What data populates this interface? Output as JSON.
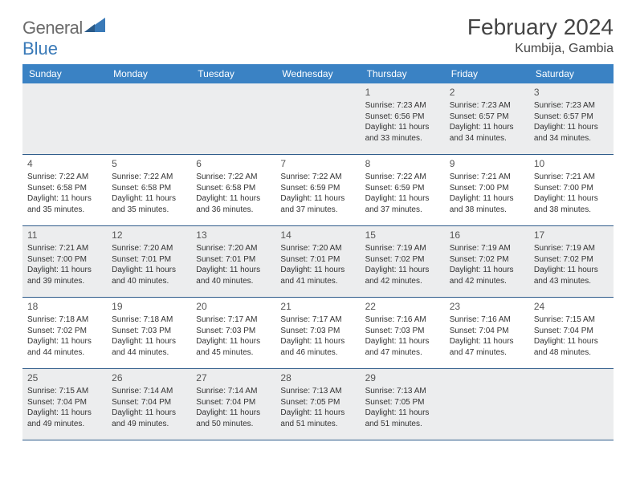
{
  "logo": {
    "general": "General",
    "blue": "Blue"
  },
  "title": "February 2024",
  "location": "Kumbija, Gambia",
  "colors": {
    "header_bg": "#3a82c4",
    "divider": "#2e5b8a",
    "shade": "#ecedee",
    "text": "#333333",
    "logo_gray": "#6b6b6b",
    "logo_blue": "#3a7ab8"
  },
  "daynames": [
    "Sunday",
    "Monday",
    "Tuesday",
    "Wednesday",
    "Thursday",
    "Friday",
    "Saturday"
  ],
  "weeks": [
    {
      "shaded": true,
      "cells": [
        null,
        null,
        null,
        null,
        {
          "num": "1",
          "sunrise": "Sunrise: 7:23 AM",
          "sunset": "Sunset: 6:56 PM",
          "daylight": "Daylight: 11 hours and 33 minutes."
        },
        {
          "num": "2",
          "sunrise": "Sunrise: 7:23 AM",
          "sunset": "Sunset: 6:57 PM",
          "daylight": "Daylight: 11 hours and 34 minutes."
        },
        {
          "num": "3",
          "sunrise": "Sunrise: 7:23 AM",
          "sunset": "Sunset: 6:57 PM",
          "daylight": "Daylight: 11 hours and 34 minutes."
        }
      ]
    },
    {
      "shaded": false,
      "cells": [
        {
          "num": "4",
          "sunrise": "Sunrise: 7:22 AM",
          "sunset": "Sunset: 6:58 PM",
          "daylight": "Daylight: 11 hours and 35 minutes."
        },
        {
          "num": "5",
          "sunrise": "Sunrise: 7:22 AM",
          "sunset": "Sunset: 6:58 PM",
          "daylight": "Daylight: 11 hours and 35 minutes."
        },
        {
          "num": "6",
          "sunrise": "Sunrise: 7:22 AM",
          "sunset": "Sunset: 6:58 PM",
          "daylight": "Daylight: 11 hours and 36 minutes."
        },
        {
          "num": "7",
          "sunrise": "Sunrise: 7:22 AM",
          "sunset": "Sunset: 6:59 PM",
          "daylight": "Daylight: 11 hours and 37 minutes."
        },
        {
          "num": "8",
          "sunrise": "Sunrise: 7:22 AM",
          "sunset": "Sunset: 6:59 PM",
          "daylight": "Daylight: 11 hours and 37 minutes."
        },
        {
          "num": "9",
          "sunrise": "Sunrise: 7:21 AM",
          "sunset": "Sunset: 7:00 PM",
          "daylight": "Daylight: 11 hours and 38 minutes."
        },
        {
          "num": "10",
          "sunrise": "Sunrise: 7:21 AM",
          "sunset": "Sunset: 7:00 PM",
          "daylight": "Daylight: 11 hours and 38 minutes."
        }
      ]
    },
    {
      "shaded": true,
      "cells": [
        {
          "num": "11",
          "sunrise": "Sunrise: 7:21 AM",
          "sunset": "Sunset: 7:00 PM",
          "daylight": "Daylight: 11 hours and 39 minutes."
        },
        {
          "num": "12",
          "sunrise": "Sunrise: 7:20 AM",
          "sunset": "Sunset: 7:01 PM",
          "daylight": "Daylight: 11 hours and 40 minutes."
        },
        {
          "num": "13",
          "sunrise": "Sunrise: 7:20 AM",
          "sunset": "Sunset: 7:01 PM",
          "daylight": "Daylight: 11 hours and 40 minutes."
        },
        {
          "num": "14",
          "sunrise": "Sunrise: 7:20 AM",
          "sunset": "Sunset: 7:01 PM",
          "daylight": "Daylight: 11 hours and 41 minutes."
        },
        {
          "num": "15",
          "sunrise": "Sunrise: 7:19 AM",
          "sunset": "Sunset: 7:02 PM",
          "daylight": "Daylight: 11 hours and 42 minutes."
        },
        {
          "num": "16",
          "sunrise": "Sunrise: 7:19 AM",
          "sunset": "Sunset: 7:02 PM",
          "daylight": "Daylight: 11 hours and 42 minutes."
        },
        {
          "num": "17",
          "sunrise": "Sunrise: 7:19 AM",
          "sunset": "Sunset: 7:02 PM",
          "daylight": "Daylight: 11 hours and 43 minutes."
        }
      ]
    },
    {
      "shaded": false,
      "cells": [
        {
          "num": "18",
          "sunrise": "Sunrise: 7:18 AM",
          "sunset": "Sunset: 7:02 PM",
          "daylight": "Daylight: 11 hours and 44 minutes."
        },
        {
          "num": "19",
          "sunrise": "Sunrise: 7:18 AM",
          "sunset": "Sunset: 7:03 PM",
          "daylight": "Daylight: 11 hours and 44 minutes."
        },
        {
          "num": "20",
          "sunrise": "Sunrise: 7:17 AM",
          "sunset": "Sunset: 7:03 PM",
          "daylight": "Daylight: 11 hours and 45 minutes."
        },
        {
          "num": "21",
          "sunrise": "Sunrise: 7:17 AM",
          "sunset": "Sunset: 7:03 PM",
          "daylight": "Daylight: 11 hours and 46 minutes."
        },
        {
          "num": "22",
          "sunrise": "Sunrise: 7:16 AM",
          "sunset": "Sunset: 7:03 PM",
          "daylight": "Daylight: 11 hours and 47 minutes."
        },
        {
          "num": "23",
          "sunrise": "Sunrise: 7:16 AM",
          "sunset": "Sunset: 7:04 PM",
          "daylight": "Daylight: 11 hours and 47 minutes."
        },
        {
          "num": "24",
          "sunrise": "Sunrise: 7:15 AM",
          "sunset": "Sunset: 7:04 PM",
          "daylight": "Daylight: 11 hours and 48 minutes."
        }
      ]
    },
    {
      "shaded": true,
      "cells": [
        {
          "num": "25",
          "sunrise": "Sunrise: 7:15 AM",
          "sunset": "Sunset: 7:04 PM",
          "daylight": "Daylight: 11 hours and 49 minutes."
        },
        {
          "num": "26",
          "sunrise": "Sunrise: 7:14 AM",
          "sunset": "Sunset: 7:04 PM",
          "daylight": "Daylight: 11 hours and 49 minutes."
        },
        {
          "num": "27",
          "sunrise": "Sunrise: 7:14 AM",
          "sunset": "Sunset: 7:04 PM",
          "daylight": "Daylight: 11 hours and 50 minutes."
        },
        {
          "num": "28",
          "sunrise": "Sunrise: 7:13 AM",
          "sunset": "Sunset: 7:05 PM",
          "daylight": "Daylight: 11 hours and 51 minutes."
        },
        {
          "num": "29",
          "sunrise": "Sunrise: 7:13 AM",
          "sunset": "Sunset: 7:05 PM",
          "daylight": "Daylight: 11 hours and 51 minutes."
        },
        null,
        null
      ]
    }
  ]
}
